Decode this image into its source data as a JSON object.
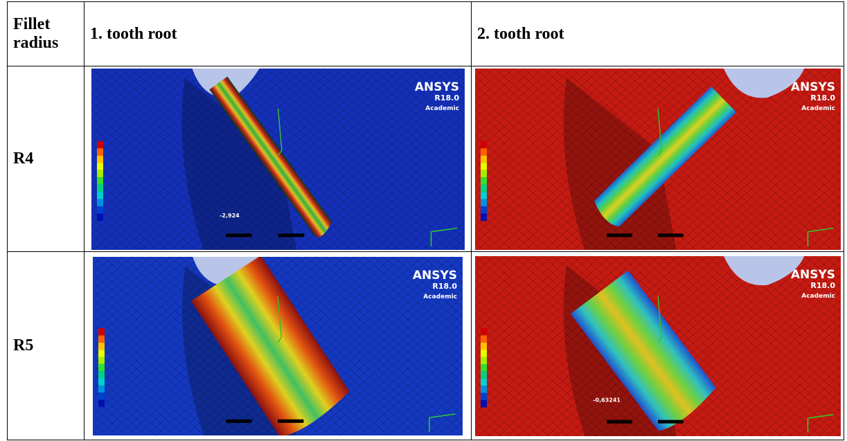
{
  "table": {
    "header": [
      "Fillet radius",
      "1. tooth root",
      "2. tooth root"
    ],
    "rows": [
      {
        "label": "R4",
        "images": [
          {
            "brand": "ANSYS",
            "version": "R18.0",
            "edition": "Academic",
            "note": "-2,924"
          },
          {
            "brand": "ANSYS",
            "version": "R18.0",
            "edition": "Academic"
          }
        ]
      },
      {
        "label": "R5",
        "images": [
          {
            "brand": "ANSYS",
            "version": "R18.0",
            "edition": "Academic"
          },
          {
            "brand": "ANSYS",
            "version": "R18.0",
            "edition": "Academic",
            "note": "-0,63241"
          }
        ]
      }
    ]
  }
}
